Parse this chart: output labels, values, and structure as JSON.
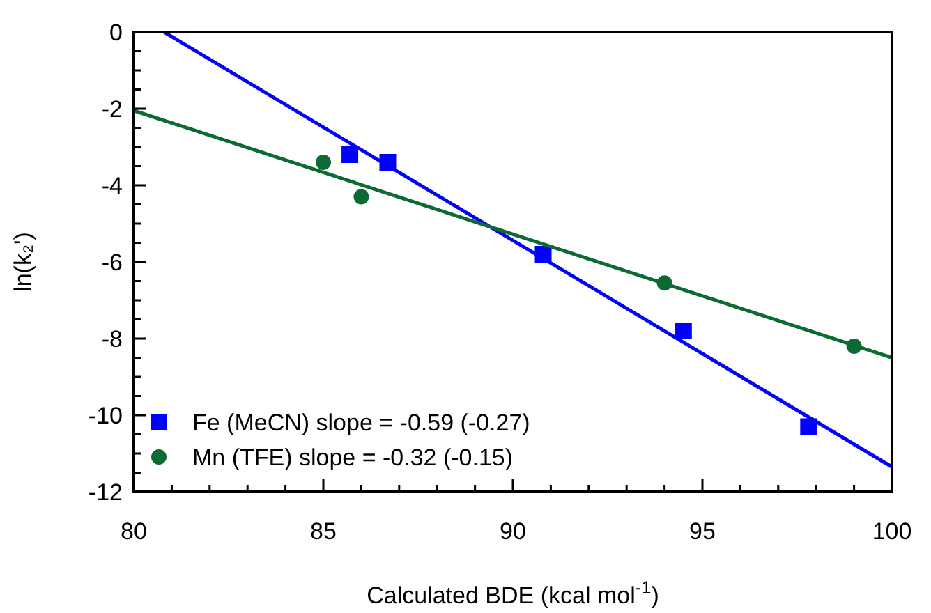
{
  "chart_data": {
    "type": "scatter",
    "xlabel": "Calculated BDE (kcal mol$^{-1}$)",
    "ylabel": "ln(k₂')",
    "xlim": [
      80,
      100
    ],
    "ylim": [
      -12,
      0
    ],
    "xticks": [
      80,
      {
        "value": 81,
        "label": null
      },
      {
        "value": 82,
        "label": null
      },
      {
        "value": 83,
        "label": null
      },
      {
        "value": 84,
        "label": null
      },
      85,
      {
        "value": 86,
        "label": null
      },
      {
        "value": 87,
        "label": null
      },
      {
        "value": 88,
        "label": null
      },
      {
        "value": 89,
        "label": null
      },
      90,
      {
        "value": 91,
        "label": null
      },
      {
        "value": 92,
        "label": null
      },
      {
        "value": 93,
        "label": null
      },
      {
        "value": 94,
        "label": null
      },
      95,
      {
        "value": 96,
        "label": null
      },
      {
        "value": 97,
        "label": null
      },
      {
        "value": 98,
        "label": null
      },
      {
        "value": 99,
        "label": null
      },
      100
    ],
    "yticks": [
      -12,
      {
        "value": -11.5,
        "label": null
      },
      {
        "value": -11,
        "label": null
      },
      {
        "value": -10.5,
        "label": null
      },
      -10,
      {
        "value": -9.5,
        "label": null
      },
      {
        "value": -9,
        "label": null
      },
      {
        "value": -8.5,
        "label": null
      },
      -8,
      {
        "value": -7.5,
        "label": null
      },
      {
        "value": -7,
        "label": null
      },
      {
        "value": -6.5,
        "label": null
      },
      -6,
      {
        "value": -5.5,
        "label": null
      },
      {
        "value": -5,
        "label": null
      },
      {
        "value": -4.5,
        "label": null
      },
      -4,
      {
        "value": -3.5,
        "label": null
      },
      {
        "value": -3,
        "label": null
      },
      {
        "value": -2.5,
        "label": null
      },
      -2,
      {
        "value": -1.5,
        "label": null
      },
      {
        "value": -1,
        "label": null
      },
      {
        "value": -0.5,
        "label": null
      },
      0
    ],
    "grid": false,
    "legend": "bottom left",
    "series": [
      {
        "name": "Fe (MeCN) slope = -0.59 (-0.27)",
        "color": "#0000ff",
        "marker": "square",
        "x": [
          85.7,
          86.7,
          90.8,
          94.5,
          97.8
        ],
        "values": [
          -3.2,
          -3.4,
          -5.8,
          -7.8,
          -10.3
        ]
      },
      {
        "name": "Mn (TFE) slope = -0.32 (-0.15)",
        "color": "#0b6b33",
        "marker": "circle",
        "x": [
          85,
          86,
          94,
          99
        ],
        "values": [
          -3.4,
          -4.3,
          -6.55,
          -8.2
        ]
      },
      {
        "type": "line",
        "color": "#0000ff",
        "marker": "none",
        "x": [
          80.8,
          100
        ],
        "values": [
          0,
          -11.35
        ]
      },
      {
        "type": "line",
        "color": "#0b6b33",
        "marker": "none",
        "x": [
          80,
          100
        ],
        "values": [
          -2.05,
          -8.5
        ]
      }
    ]
  }
}
